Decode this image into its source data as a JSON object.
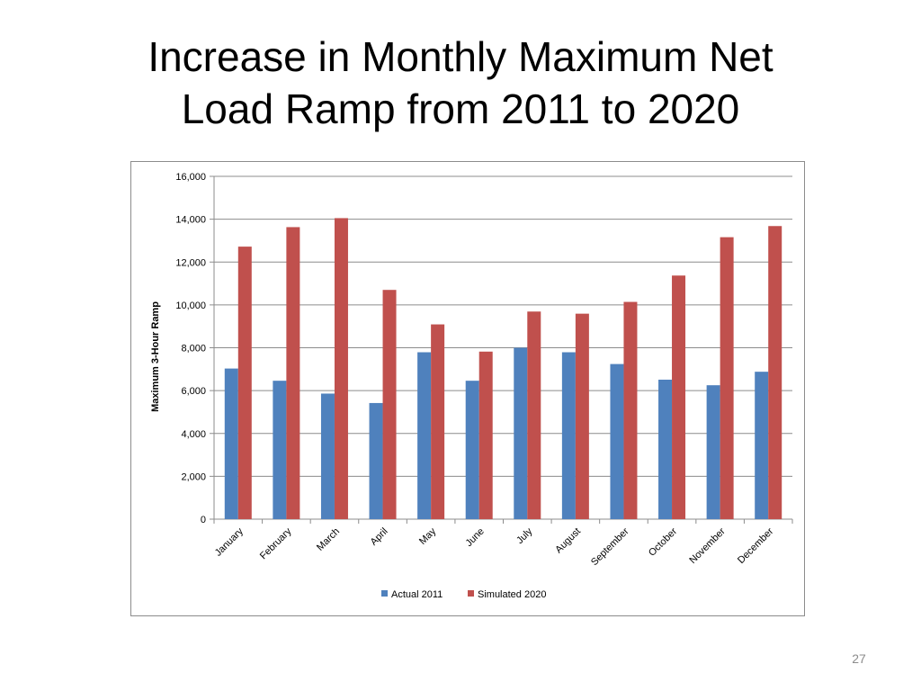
{
  "slide": {
    "title_line1": "Increase in Monthly Maximum Net",
    "title_line2": "Load Ramp from 2011 to 2020",
    "page_number": "27"
  },
  "colors": {
    "actual": "#4f81bd",
    "simulated": "#c0504d",
    "grid": "#8c8c8c",
    "text": "#000000"
  },
  "chart_data": {
    "type": "bar",
    "title": "",
    "xlabel": "",
    "ylabel": "Maximum 3-Hour Ramp",
    "ylim": [
      0,
      16000
    ],
    "yticks": [
      0,
      2000,
      4000,
      6000,
      8000,
      10000,
      12000,
      14000,
      16000
    ],
    "ytick_labels": [
      "0",
      "2,000",
      "4,000",
      "6,000",
      "8,000",
      "10,000",
      "12,000",
      "14,000",
      "16,000"
    ],
    "grid": true,
    "legend_position": "bottom",
    "categories": [
      "January",
      "February",
      "March",
      "April",
      "May",
      "June",
      "July",
      "August",
      "September",
      "October",
      "November",
      "December"
    ],
    "series": [
      {
        "name": "Actual 2011",
        "values": [
          7030,
          6460,
          5860,
          5420,
          7790,
          6460,
          8000,
          7790,
          7240,
          6510,
          6250,
          6880
        ]
      },
      {
        "name": "Simulated 2020",
        "values": [
          12720,
          13630,
          14050,
          10700,
          9090,
          7820,
          9690,
          9590,
          10140,
          11370,
          13160,
          13680
        ]
      }
    ]
  }
}
